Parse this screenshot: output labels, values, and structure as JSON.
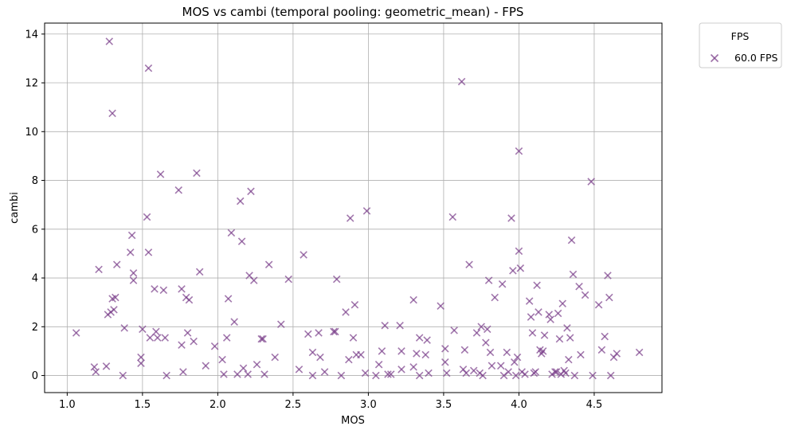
{
  "chart_data": {
    "type": "scatter",
    "title": "MOS vs cambi (temporal pooling: geometric_mean) - FPS",
    "xlabel": "MOS",
    "ylabel": "cambi",
    "xlim": [
      0.85,
      4.95
    ],
    "ylim": [
      -0.7,
      14.45
    ],
    "xticks": [
      "1.0",
      "1.5",
      "2.0",
      "2.5",
      "3.0",
      "3.5",
      "4.0",
      "4.5"
    ],
    "yticks": [
      "0",
      "2",
      "4",
      "6",
      "8",
      "10",
      "12",
      "14"
    ],
    "grid": true,
    "marker": "x",
    "marker_color": "#7b3f8a",
    "legend": {
      "title": "FPS",
      "placement": "outside top-right",
      "entries": [
        "60.0 FPS"
      ]
    },
    "series": [
      {
        "name": "60.0 FPS",
        "color": "#7b3f8a",
        "points": [
          [
            1.06,
            1.75
          ],
          [
            1.18,
            0.35
          ],
          [
            1.19,
            0.15
          ],
          [
            1.21,
            4.35
          ],
          [
            1.26,
            0.38
          ],
          [
            1.27,
            2.5
          ],
          [
            1.28,
            13.7
          ],
          [
            1.29,
            2.6
          ],
          [
            1.3,
            10.75
          ],
          [
            1.3,
            3.15
          ],
          [
            1.31,
            2.7
          ],
          [
            1.32,
            3.2
          ],
          [
            1.33,
            4.55
          ],
          [
            1.37,
            0.0
          ],
          [
            1.38,
            1.95
          ],
          [
            1.42,
            5.05
          ],
          [
            1.43,
            5.75
          ],
          [
            1.44,
            4.2
          ],
          [
            1.44,
            3.9
          ],
          [
            1.49,
            0.75
          ],
          [
            1.49,
            0.5
          ],
          [
            1.5,
            1.9
          ],
          [
            1.53,
            6.5
          ],
          [
            1.54,
            12.6
          ],
          [
            1.54,
            5.05
          ],
          [
            1.55,
            1.55
          ],
          [
            1.58,
            3.55
          ],
          [
            1.59,
            1.8
          ],
          [
            1.6,
            1.55
          ],
          [
            1.62,
            8.25
          ],
          [
            1.64,
            3.5
          ],
          [
            1.65,
            1.55
          ],
          [
            1.66,
            0.0
          ],
          [
            1.74,
            7.6
          ],
          [
            1.76,
            3.55
          ],
          [
            1.76,
            1.25
          ],
          [
            1.77,
            0.15
          ],
          [
            1.79,
            3.2
          ],
          [
            1.8,
            1.75
          ],
          [
            1.81,
            3.1
          ],
          [
            1.84,
            1.4
          ],
          [
            1.86,
            8.3
          ],
          [
            1.88,
            4.25
          ],
          [
            1.92,
            0.4
          ],
          [
            1.98,
            1.2
          ],
          [
            2.03,
            0.65
          ],
          [
            2.04,
            0.05
          ],
          [
            2.06,
            1.55
          ],
          [
            2.07,
            3.15
          ],
          [
            2.09,
            5.85
          ],
          [
            2.11,
            2.2
          ],
          [
            2.13,
            0.05
          ],
          [
            2.15,
            7.15
          ],
          [
            2.16,
            5.5
          ],
          [
            2.17,
            0.3
          ],
          [
            2.2,
            0.05
          ],
          [
            2.21,
            4.1
          ],
          [
            2.22,
            7.55
          ],
          [
            2.24,
            3.9
          ],
          [
            2.26,
            0.45
          ],
          [
            2.29,
            1.5
          ],
          [
            2.3,
            1.5
          ],
          [
            2.31,
            0.05
          ],
          [
            2.34,
            4.55
          ],
          [
            2.38,
            0.75
          ],
          [
            2.42,
            2.1
          ],
          [
            2.47,
            3.95
          ],
          [
            2.54,
            0.25
          ],
          [
            2.57,
            4.95
          ],
          [
            2.6,
            1.7
          ],
          [
            2.63,
            0.95
          ],
          [
            2.63,
            0.0
          ],
          [
            2.67,
            1.75
          ],
          [
            2.68,
            0.75
          ],
          [
            2.71,
            0.15
          ],
          [
            2.77,
            1.8
          ],
          [
            2.78,
            1.8
          ],
          [
            2.79,
            3.95
          ],
          [
            2.82,
            0.0
          ],
          [
            2.85,
            2.6
          ],
          [
            2.87,
            0.65
          ],
          [
            2.88,
            6.45
          ],
          [
            2.9,
            1.55
          ],
          [
            2.91,
            2.9
          ],
          [
            2.92,
            0.85
          ],
          [
            2.95,
            0.85
          ],
          [
            2.98,
            0.1
          ],
          [
            2.99,
            6.75
          ],
          [
            3.05,
            0.0
          ],
          [
            3.07,
            0.45
          ],
          [
            3.09,
            1.0
          ],
          [
            3.11,
            2.05
          ],
          [
            3.13,
            0.05
          ],
          [
            3.15,
            0.05
          ],
          [
            3.21,
            2.05
          ],
          [
            3.22,
            1.0
          ],
          [
            3.22,
            0.25
          ],
          [
            3.3,
            0.35
          ],
          [
            3.3,
            3.1
          ],
          [
            3.32,
            0.9
          ],
          [
            3.34,
            1.55
          ],
          [
            3.34,
            0.0
          ],
          [
            3.38,
            0.85
          ],
          [
            3.39,
            1.45
          ],
          [
            3.4,
            0.1
          ],
          [
            3.48,
            2.85
          ],
          [
            3.51,
            1.1
          ],
          [
            3.51,
            0.55
          ],
          [
            3.52,
            0.1
          ],
          [
            3.56,
            6.5
          ],
          [
            3.57,
            1.85
          ],
          [
            3.62,
            12.05
          ],
          [
            3.63,
            0.25
          ],
          [
            3.64,
            1.05
          ],
          [
            3.65,
            0.1
          ],
          [
            3.67,
            4.55
          ],
          [
            3.7,
            0.2
          ],
          [
            3.72,
            1.75
          ],
          [
            3.74,
            0.1
          ],
          [
            3.75,
            2.0
          ],
          [
            3.76,
            0.0
          ],
          [
            3.78,
            1.35
          ],
          [
            3.79,
            1.9
          ],
          [
            3.8,
            3.9
          ],
          [
            3.81,
            0.95
          ],
          [
            3.82,
            0.4
          ],
          [
            3.84,
            3.2
          ],
          [
            3.88,
            0.4
          ],
          [
            3.89,
            3.75
          ],
          [
            3.9,
            0.0
          ],
          [
            3.92,
            0.95
          ],
          [
            3.93,
            0.15
          ],
          [
            3.95,
            6.45
          ],
          [
            3.96,
            4.3
          ],
          [
            3.97,
            0.55
          ],
          [
            3.98,
            0.0
          ],
          [
            3.99,
            0.75
          ],
          [
            4.0,
            9.2
          ],
          [
            4.0,
            5.1
          ],
          [
            4.01,
            4.4
          ],
          [
            4.02,
            0.15
          ],
          [
            4.04,
            0.05
          ],
          [
            4.07,
            3.05
          ],
          [
            4.08,
            2.4
          ],
          [
            4.09,
            1.75
          ],
          [
            4.1,
            0.1
          ],
          [
            4.11,
            0.15
          ],
          [
            4.12,
            3.7
          ],
          [
            4.13,
            2.6
          ],
          [
            4.14,
            1.05
          ],
          [
            4.15,
            0.9
          ],
          [
            4.16,
            1.0
          ],
          [
            4.17,
            1.65
          ],
          [
            4.2,
            2.5
          ],
          [
            4.21,
            2.3
          ],
          [
            4.22,
            0.05
          ],
          [
            4.24,
            0.15
          ],
          [
            4.25,
            0.15
          ],
          [
            4.26,
            2.55
          ],
          [
            4.27,
            1.5
          ],
          [
            4.28,
            0.05
          ],
          [
            4.29,
            2.95
          ],
          [
            4.3,
            0.2
          ],
          [
            4.31,
            0.1
          ],
          [
            4.32,
            1.95
          ],
          [
            4.33,
            0.65
          ],
          [
            4.34,
            1.55
          ],
          [
            4.35,
            5.55
          ],
          [
            4.36,
            4.15
          ],
          [
            4.37,
            0.0
          ],
          [
            4.4,
            3.65
          ],
          [
            4.41,
            0.85
          ],
          [
            4.44,
            3.3
          ],
          [
            4.48,
            7.95
          ],
          [
            4.49,
            0.0
          ],
          [
            4.53,
            2.9
          ],
          [
            4.55,
            1.05
          ],
          [
            4.57,
            1.6
          ],
          [
            4.59,
            4.1
          ],
          [
            4.6,
            3.2
          ],
          [
            4.61,
            0.0
          ],
          [
            4.63,
            0.75
          ],
          [
            4.65,
            0.9
          ],
          [
            4.8,
            0.95
          ]
        ]
      }
    ]
  }
}
